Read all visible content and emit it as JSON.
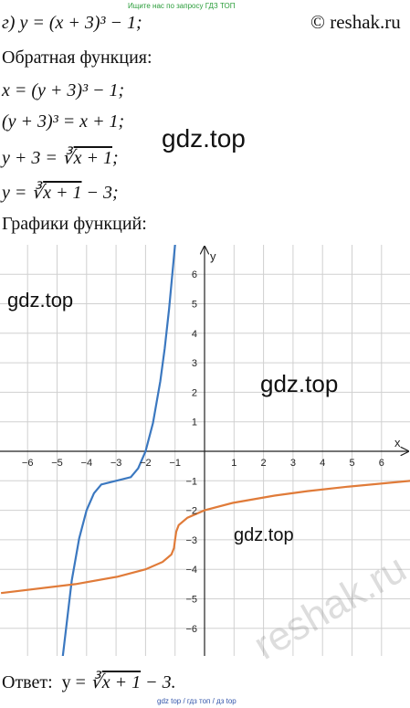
{
  "header": {
    "search_note": "Ищите нас по запросу ГДЗ ТОП",
    "site": "© reshak.ru"
  },
  "lines": [
    "г) y = (x + 3)³ − 1;",
    "Обратная функция:",
    "x = (y + 3)³ − 1;",
    "(y + 3)³ = x + 1;",
    {
      "prefix": "y + 3 = ",
      "root": "∛",
      "radicand": "x + 1",
      "suffix": ";"
    },
    {
      "prefix": "y = ",
      "root": "∛",
      "radicand": "x + 1",
      "suffix": " − 3;"
    },
    "Графики функций:"
  ],
  "graph": {
    "x_label": "x",
    "y_label": "y",
    "xticks": [
      {
        "value": -6,
        "label": "−6"
      },
      {
        "value": -5,
        "label": "−5"
      },
      {
        "value": -4,
        "label": "−4"
      },
      {
        "value": -3,
        "label": "−3"
      },
      {
        "value": -2,
        "label": "−2"
      },
      {
        "value": -1,
        "label": "−1"
      },
      1,
      2,
      3,
      4,
      5,
      6
    ],
    "yticks": [
      {
        "value": -6,
        "label": "−6"
      },
      {
        "value": -5,
        "label": "−5"
      },
      {
        "value": -4,
        "label": "−4"
      },
      {
        "value": -3,
        "label": "−3"
      },
      {
        "value": -2,
        "label": "−2"
      },
      {
        "value": -1,
        "label": "−1"
      },
      1,
      2,
      3,
      4,
      5,
      6
    ]
  },
  "answer": {
    "prefix": "Ответ:  y = ",
    "root": "∛",
    "radicand": "x + 1",
    "suffix": " − 3."
  },
  "watermarks": [
    "gdz.top",
    "gdz.top",
    "gdz.top",
    "gdz.top",
    "reshak.ru"
  ],
  "footer": "gdz top / гдз топ / дз top"
}
